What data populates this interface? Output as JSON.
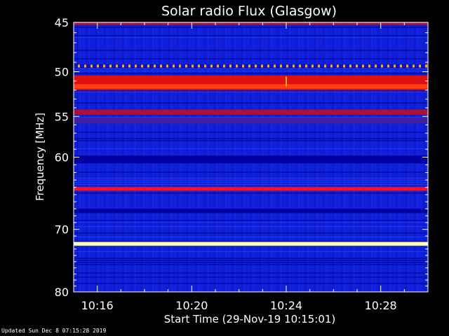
{
  "chart_data": {
    "type": "heatmap",
    "title": "Solar radio Flux (Glasgow)",
    "ylabel": "Frequency [MHz]",
    "xlabel": "Start Time (29-Nov-19 10:15:01)",
    "ylim": [
      45,
      80
    ],
    "y_ticks": [
      "45",
      "50",
      "55",
      "60",
      "70",
      "80"
    ],
    "x_ticks": [
      "10:16",
      "10:20",
      "10:24",
      "10:28"
    ],
    "x_tick_minutes": [
      16,
      20,
      24,
      28
    ],
    "x_range_minutes": [
      15,
      30
    ],
    "background_color": "#1020d8",
    "bands": [
      {
        "freq_mhz": 45.1,
        "width_mhz": 0.3,
        "color": "#a01840"
      },
      {
        "freq_mhz": 49.4,
        "width_mhz": 0.3,
        "color": "#ffb000",
        "style": "dotted"
      },
      {
        "freq_mhz": 51.2,
        "width_mhz": 1.6,
        "color": "#e01010"
      },
      {
        "freq_mhz": 51.6,
        "width_mhz": 0.5,
        "color": "#ff4010"
      },
      {
        "freq_mhz": 54.5,
        "width_mhz": 0.6,
        "color": "#b01030"
      },
      {
        "freq_mhz": 55.5,
        "width_mhz": 0.7,
        "color": "#4020a0"
      },
      {
        "freq_mhz": 60.3,
        "width_mhz": 1.0,
        "color": "#0000a0"
      },
      {
        "freq_mhz": 64.2,
        "width_mhz": 0.5,
        "color": "#ff1020"
      },
      {
        "freq_mhz": 67.3,
        "width_mhz": 0.6,
        "color": "#0000a0"
      },
      {
        "freq_mhz": 72.2,
        "width_mhz": 0.6,
        "color": "#ffff60"
      },
      {
        "freq_mhz": 72.2,
        "width_mhz": 0.25,
        "color": "#ffffff"
      }
    ]
  },
  "footer": {
    "updated": "Updated Sun Dec  8 07:15:28 2019"
  }
}
